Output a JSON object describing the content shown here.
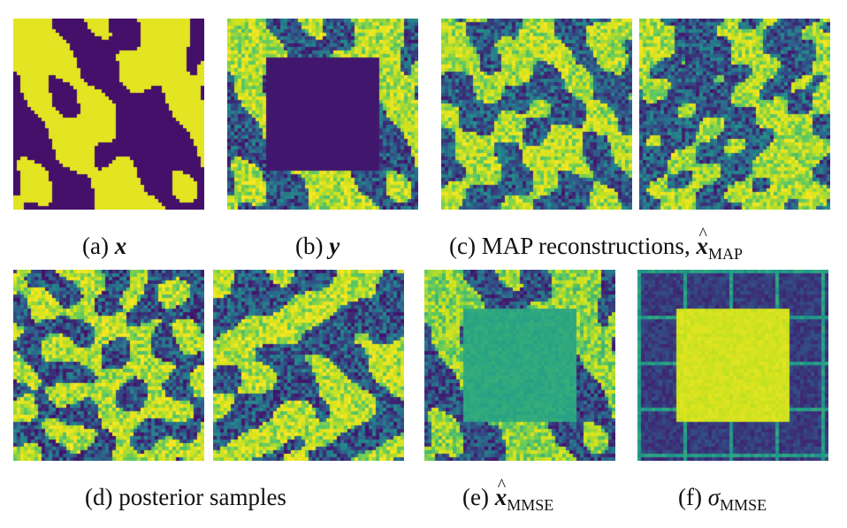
{
  "colors": {
    "dark": "#44106a",
    "mid_dark": "#2e5f8c",
    "teal": "#1f9c8a",
    "green": "#5ec962",
    "light": "#c9e21f",
    "yellow": "#fde725"
  },
  "panels": [
    {
      "id": "a",
      "kind": "ground-truth"
    },
    {
      "id": "b",
      "kind": "observation-masked"
    },
    {
      "id": "c1",
      "kind": "map-reconstruction"
    },
    {
      "id": "c2",
      "kind": "map-reconstruction"
    },
    {
      "id": "d1",
      "kind": "posterior-sample"
    },
    {
      "id": "d2",
      "kind": "posterior-sample"
    },
    {
      "id": "e",
      "kind": "mmse-mean"
    },
    {
      "id": "f",
      "kind": "mmse-std"
    }
  ],
  "captions": {
    "a_prefix": "(a)",
    "a_symbol": "x",
    "b_prefix": "(b)",
    "b_symbol": "y",
    "c_text": "(c) MAP reconstructions,",
    "c_symbol": "x",
    "c_sub": "MAP",
    "d_text": "(d) posterior samples",
    "e_prefix": "(e)",
    "e_symbol": "x",
    "e_sub": "MMSE",
    "f_prefix": "(f)",
    "f_symbol": "σ",
    "f_sub": "MMSE"
  }
}
